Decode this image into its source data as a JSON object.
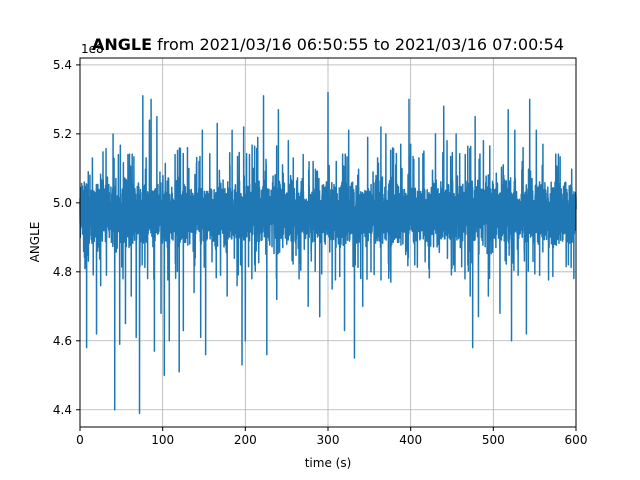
{
  "chart_data": {
    "type": "line",
    "title_bold": "ANGLE",
    "title_rest": " from 2021/03/16 06:50:55 to 2021/03/16 07:00:54",
    "xlabel": "time (s)",
    "ylabel": "ANGLE",
    "offset_text": "1e8",
    "xlim": [
      0,
      600
    ],
    "ylim": [
      4.35,
      5.42
    ],
    "xticks": [
      0,
      100,
      200,
      300,
      400,
      500,
      600
    ],
    "yticks": [
      4.4,
      4.6,
      4.8,
      5.0,
      5.2,
      5.4
    ],
    "ytick_labels": [
      "4.4",
      "4.6",
      "4.8",
      "5.0",
      "5.2",
      "5.4"
    ],
    "grid": true,
    "line_color": "#1f77b4",
    "series": [
      {
        "baseline": 4.97,
        "band_low": 4.86,
        "band_high": 5.08,
        "points_per_second": 10,
        "spikes": [
          [
            8,
            4.58
          ],
          [
            10,
            5.09
          ],
          [
            12,
            5.08
          ],
          [
            15,
            5.13
          ],
          [
            20,
            4.62
          ],
          [
            25,
            4.76
          ],
          [
            32,
            4.79
          ],
          [
            40,
            5.2
          ],
          [
            42,
            4.4
          ],
          [
            48,
            4.59
          ],
          [
            52,
            4.78
          ],
          [
            55,
            4.65
          ],
          [
            58,
            5.14
          ],
          [
            62,
            4.73
          ],
          [
            68,
            4.61
          ],
          [
            72,
            4.39
          ],
          [
            76,
            5.31
          ],
          [
            80,
            5.13
          ],
          [
            84,
            5.24
          ],
          [
            86,
            5.3
          ],
          [
            90,
            4.57
          ],
          [
            93,
            5.25
          ],
          [
            98,
            4.68
          ],
          [
            102,
            4.5
          ],
          [
            108,
            4.6
          ],
          [
            115,
            5.14
          ],
          [
            120,
            4.51
          ],
          [
            125,
            4.63
          ],
          [
            130,
            5.16
          ],
          [
            138,
            4.74
          ],
          [
            144,
            5.12
          ],
          [
            146,
            4.61
          ],
          [
            148,
            5.21
          ],
          [
            152,
            4.56
          ],
          [
            160,
            4.89
          ],
          [
            166,
            5.23
          ],
          [
            170,
            4.79
          ],
          [
            178,
            4.73
          ],
          [
            184,
            5.21
          ],
          [
            190,
            4.76
          ],
          [
            196,
            4.53
          ],
          [
            198,
            5.22
          ],
          [
            200,
            4.6
          ],
          [
            205,
            5.14
          ],
          [
            210,
            5.1
          ],
          [
            215,
            5.19
          ],
          [
            222,
            5.31
          ],
          [
            226,
            4.56
          ],
          [
            232,
            5.03
          ],
          [
            238,
            4.72
          ],
          [
            240,
            5.27
          ],
          [
            245,
            5.11
          ],
          [
            252,
            5.18
          ],
          [
            258,
            5.13
          ],
          [
            265,
            4.78
          ],
          [
            270,
            5.14
          ],
          [
            276,
            4.7
          ],
          [
            282,
            5.12
          ],
          [
            286,
            5.09
          ],
          [
            290,
            4.67
          ],
          [
            296,
            5.04
          ],
          [
            300,
            5.32
          ],
          [
            305,
            4.75
          ],
          [
            310,
            5.12
          ],
          [
            316,
            5.05
          ],
          [
            320,
            4.63
          ],
          [
            325,
            5.21
          ],
          [
            332,
            4.55
          ],
          [
            336,
            5.08
          ],
          [
            342,
            4.7
          ],
          [
            348,
            5.19
          ],
          [
            352,
            4.8
          ],
          [
            360,
            5.13
          ],
          [
            364,
            5.22
          ],
          [
            370,
            5.2
          ],
          [
            376,
            4.77
          ],
          [
            382,
            5.11
          ],
          [
            388,
            5.17
          ],
          [
            394,
            4.85
          ],
          [
            398,
            5.3
          ],
          [
            400,
            5.17
          ],
          [
            405,
            4.82
          ],
          [
            410,
            5.13
          ],
          [
            416,
            5.15
          ],
          [
            422,
            4.81
          ],
          [
            430,
            5.2
          ],
          [
            436,
            4.95
          ],
          [
            440,
            5.28
          ],
          [
            444,
            5.18
          ],
          [
            450,
            4.81
          ],
          [
            455,
            5.2
          ],
          [
            460,
            4.87
          ],
          [
            466,
            5.14
          ],
          [
            472,
            4.73
          ],
          [
            475,
            4.58
          ],
          [
            478,
            5.25
          ],
          [
            482,
            4.67
          ],
          [
            488,
            5.18
          ],
          [
            494,
            4.73
          ],
          [
            500,
            5.02
          ],
          [
            508,
            4.68
          ],
          [
            512,
            5.11
          ],
          [
            518,
            5.27
          ],
          [
            522,
            4.6
          ],
          [
            526,
            5.21
          ],
          [
            530,
            4.79
          ],
          [
            536,
            5.16
          ],
          [
            540,
            4.62
          ],
          [
            544,
            5.3
          ],
          [
            548,
            4.83
          ],
          [
            552,
            5.21
          ],
          [
            556,
            4.79
          ],
          [
            560,
            5.17
          ],
          [
            565,
            4.94
          ],
          [
            570,
            5.06
          ],
          [
            575,
            4.88
          ],
          [
            578,
            5.09
          ]
        ]
      }
    ]
  }
}
